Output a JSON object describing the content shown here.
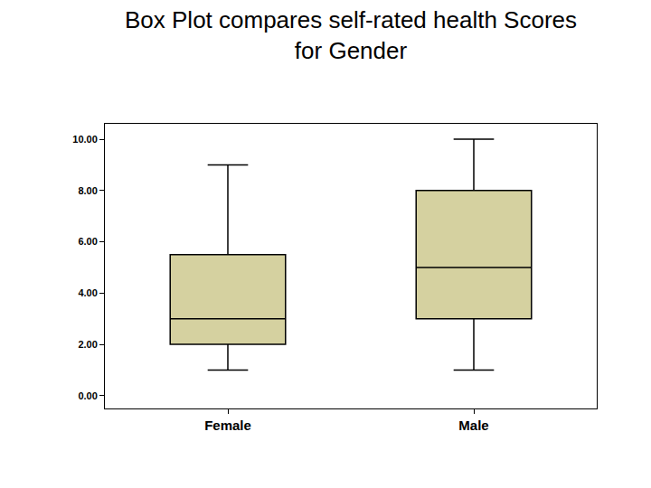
{
  "chart_data": {
    "type": "box",
    "title": "Box Plot compares self-rated health Scores\nfor Gender",
    "categories": [
      "Female",
      "Male"
    ],
    "min": [
      1,
      1
    ],
    "q1": [
      2,
      3
    ],
    "median": [
      3,
      5
    ],
    "q3": [
      5.5,
      8
    ],
    "max": [
      9,
      10
    ],
    "color": "#d5d1a0",
    "ylim": [
      -0.5,
      10.6
    ],
    "yticks": [
      {
        "value": 0,
        "label": "0.00"
      },
      {
        "value": 2,
        "label": "2.00"
      },
      {
        "value": 4,
        "label": "4.00"
      },
      {
        "value": 6,
        "label": "6.00"
      },
      {
        "value": 8,
        "label": "8.00"
      },
      {
        "value": 10,
        "label": "10.00"
      }
    ],
    "grid": false
  }
}
